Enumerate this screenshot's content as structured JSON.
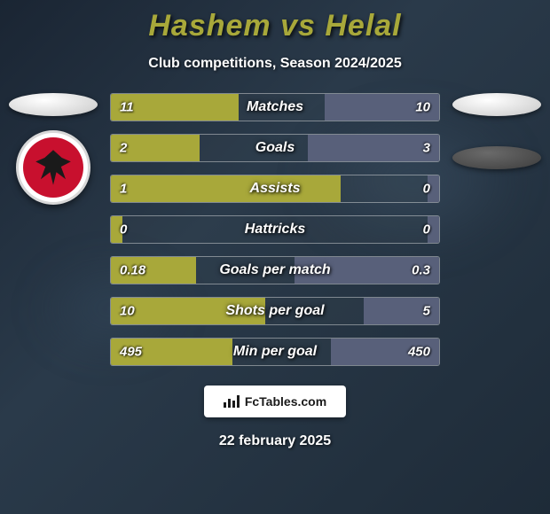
{
  "title": "Hashem vs Helal",
  "subtitle": "Club competitions, Season 2024/2025",
  "date": "22 february 2025",
  "logo": "FcTables.com",
  "colors": {
    "title": "#a8a83a",
    "text": "#ffffff",
    "bar_left": "#a8a83a",
    "bar_right": "#58607a",
    "bg_start": "#1a2533",
    "bg_end": "#1e2b38",
    "badge_red": "#c8102e"
  },
  "bar_style": {
    "height": 32,
    "gap": 14,
    "label_fontsize": 16,
    "value_fontsize": 15
  },
  "rows": [
    {
      "label": "Matches",
      "left_val": "11",
      "right_val": "10",
      "left_pct": 39,
      "right_pct": 35
    },
    {
      "label": "Goals",
      "left_val": "2",
      "right_val": "3",
      "left_pct": 27,
      "right_pct": 40
    },
    {
      "label": "Assists",
      "left_val": "1",
      "right_val": "0",
      "left_pct": 70,
      "right_pct": 3.5
    },
    {
      "label": "Hattricks",
      "left_val": "0",
      "right_val": "0",
      "left_pct": 3.5,
      "right_pct": 3.5
    },
    {
      "label": "Goals per match",
      "left_val": "0.18",
      "right_val": "0.3",
      "left_pct": 26,
      "right_pct": 44
    },
    {
      "label": "Shots per goal",
      "left_val": "10",
      "right_val": "5",
      "left_pct": 47,
      "right_pct": 23
    },
    {
      "label": "Min per goal",
      "left_val": "495",
      "right_val": "450",
      "left_pct": 37,
      "right_pct": 33
    }
  ]
}
